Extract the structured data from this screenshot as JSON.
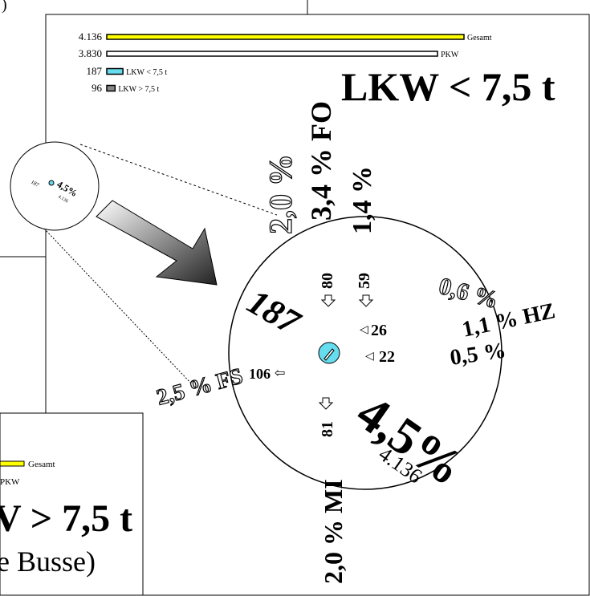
{
  "title": "LKW < 7,5 t",
  "fragment": ")",
  "legend": {
    "items": [
      {
        "value": 4136,
        "label": "4.136",
        "name": "Gesamt",
        "color": "#ffff00"
      },
      {
        "value": 3830,
        "label": "3.830",
        "name": "PKW",
        "color": "#ffffff"
      },
      {
        "value": 187,
        "label": "187",
        "name": "LKW < 7,5 t",
        "color": "#66ddee"
      },
      {
        "value": 96,
        "label": "96",
        "name": "LKW > 7,5 t",
        "color": "#888888"
      }
    ]
  },
  "directions": {
    "fo_left": "2,0 %",
    "fo": "3,4 % FO",
    "fo_right": "1,4 %",
    "hz_top": "0,6 %",
    "hz": "1,1 % HZ",
    "hz_bottom": "0,5 %",
    "fs": "2,5 % FS",
    "mi": "2,0 % MI"
  },
  "node": {
    "in_fo_a": "80",
    "in_fo_b": "59",
    "total_in": "187",
    "hz_a": "26",
    "hz_b": "22",
    "fs": "106",
    "mi": "81",
    "share": "4,5%",
    "total": "4.136"
  },
  "thumbnail": {
    "count": "187",
    "share": "4,5%",
    "total": "4.136"
  },
  "second_panel": {
    "gesamt": "Gesamt",
    "pkw": "PKW",
    "title": "V > 7,5 t",
    "subtitle": "e Busse)"
  }
}
